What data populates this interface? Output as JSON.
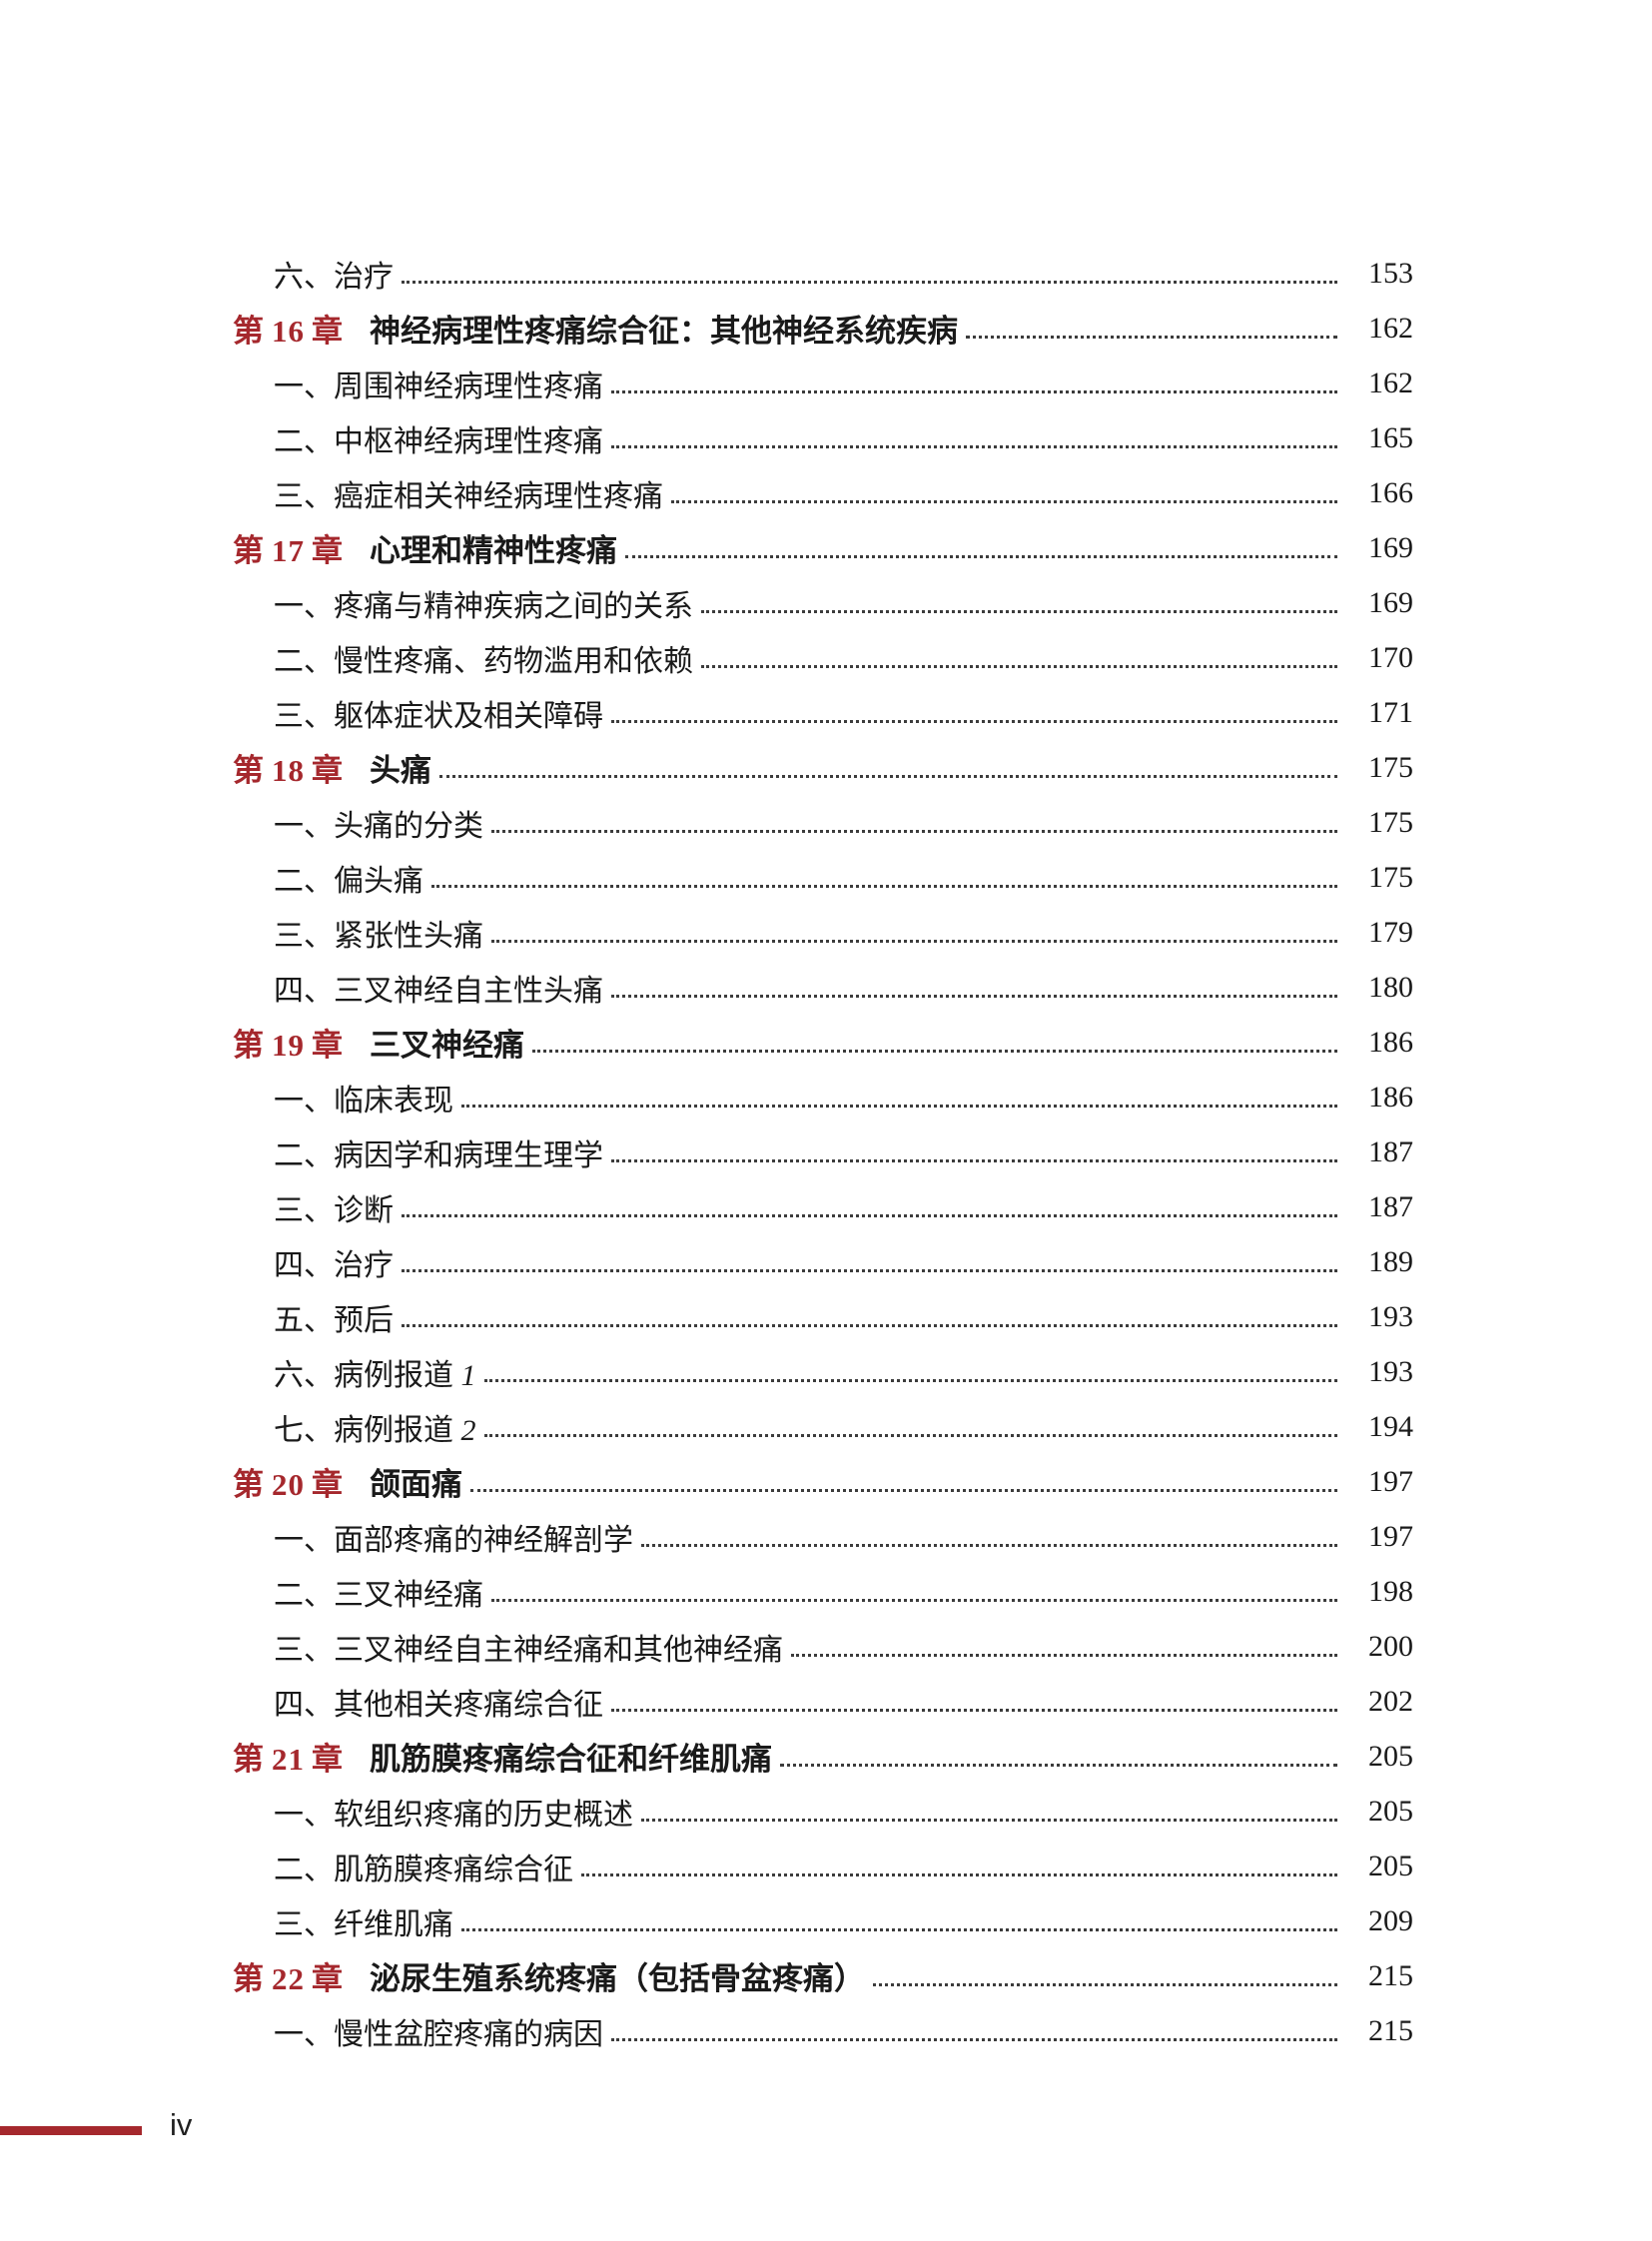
{
  "colors": {
    "accent": "#a5282d",
    "text": "#1a1a1a"
  },
  "footer": {
    "page_label": "iv"
  },
  "toc": {
    "chapter_prefix": "第",
    "chapter_suffix": "章",
    "rows": [
      {
        "type": "item",
        "title": "六、治疗",
        "page": "153"
      },
      {
        "type": "chapter",
        "chapter_num": "16",
        "title": "神经病理性疼痛综合征：其他神经系统疾病",
        "page": "162"
      },
      {
        "type": "item",
        "title": "一、周围神经病理性疼痛",
        "page": "162"
      },
      {
        "type": "item",
        "title": "二、中枢神经病理性疼痛",
        "page": "165"
      },
      {
        "type": "item",
        "title": "三、癌症相关神经病理性疼痛",
        "page": "166"
      },
      {
        "type": "chapter",
        "chapter_num": "17",
        "title": "心理和精神性疼痛",
        "page": "169"
      },
      {
        "type": "item",
        "title": "一、疼痛与精神疾病之间的关系",
        "page": "169"
      },
      {
        "type": "item",
        "title": "二、慢性疼痛、药物滥用和依赖",
        "page": "170"
      },
      {
        "type": "item",
        "title": "三、躯体症状及相关障碍",
        "page": "171"
      },
      {
        "type": "chapter",
        "chapter_num": "18",
        "title": "头痛",
        "page": "175"
      },
      {
        "type": "item",
        "title": "一、头痛的分类",
        "page": "175"
      },
      {
        "type": "item",
        "title": "二、偏头痛",
        "page": "175"
      },
      {
        "type": "item",
        "title": "三、紧张性头痛",
        "page": "179"
      },
      {
        "type": "item",
        "title": "四、三叉神经自主性头痛",
        "page": "180"
      },
      {
        "type": "chapter",
        "chapter_num": "19",
        "title": "三叉神经痛",
        "page": "186"
      },
      {
        "type": "item",
        "title": "一、临床表现",
        "page": "186"
      },
      {
        "type": "item",
        "title": "二、病因学和病理生理学",
        "page": "187"
      },
      {
        "type": "item",
        "title": "三、诊断",
        "page": "187"
      },
      {
        "type": "item",
        "title": "四、治疗",
        "page": "189"
      },
      {
        "type": "item",
        "title": "五、预后",
        "page": "193"
      },
      {
        "type": "item",
        "title": "六、病例报道 1",
        "page": "193"
      },
      {
        "type": "item",
        "title": "七、病例报道 2",
        "page": "194"
      },
      {
        "type": "chapter",
        "chapter_num": "20",
        "title": "颌面痛",
        "page": "197"
      },
      {
        "type": "item",
        "title": "一、面部疼痛的神经解剖学",
        "page": "197"
      },
      {
        "type": "item",
        "title": "二、三叉神经痛",
        "page": "198"
      },
      {
        "type": "item",
        "title": "三、三叉神经自主神经痛和其他神经痛",
        "page": "200"
      },
      {
        "type": "item",
        "title": "四、其他相关疼痛综合征",
        "page": "202"
      },
      {
        "type": "chapter",
        "chapter_num": "21",
        "title": "肌筋膜疼痛综合征和纤维肌痛",
        "page": "205"
      },
      {
        "type": "item",
        "title": "一、软组织疼痛的历史概述",
        "page": "205"
      },
      {
        "type": "item",
        "title": "二、肌筋膜疼痛综合征",
        "page": "205"
      },
      {
        "type": "item",
        "title": "三、纤维肌痛",
        "page": "209"
      },
      {
        "type": "chapter",
        "chapter_num": "22",
        "title": "泌尿生殖系统疼痛（包括骨盆疼痛）",
        "page": "215"
      },
      {
        "type": "item",
        "title": "一、慢性盆腔疼痛的病因",
        "page": "215"
      }
    ]
  }
}
